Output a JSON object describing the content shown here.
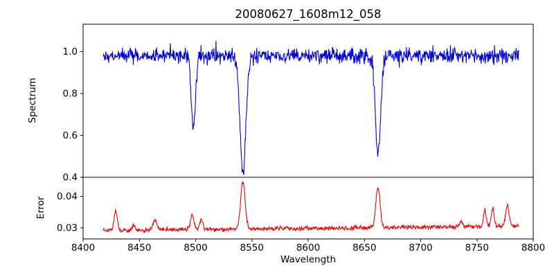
{
  "chart_data": {
    "type": "line",
    "title": "20080627_1608m12_058",
    "xlabel": "Wavelength",
    "xlim": [
      8400,
      8800
    ],
    "x_range": [
      8418,
      8787
    ],
    "n_points": 1000,
    "seed": 20080627,
    "grid": false,
    "legend": "none",
    "xticks": [
      {
        "v": 8400,
        "label": "8400"
      },
      {
        "v": 8450,
        "label": "8450"
      },
      {
        "v": 8500,
        "label": "8500"
      },
      {
        "v": 8550,
        "label": "8550"
      },
      {
        "v": 8600,
        "label": "8600"
      },
      {
        "v": 8650,
        "label": "8650"
      },
      {
        "v": 8700,
        "label": "8700"
      },
      {
        "v": 8750,
        "label": "8750"
      },
      {
        "v": 8800,
        "label": "8800"
      }
    ],
    "panels": [
      {
        "panel": "spectrum",
        "ylabel": "Spectrum",
        "color": "#0000dd",
        "ylim": [
          0.4,
          1.13
        ],
        "yticks": [
          {
            "v": 0.4,
            "label": "0.4"
          },
          {
            "v": 0.6,
            "label": "0.6"
          },
          {
            "v": 0.8,
            "label": "0.8"
          },
          {
            "v": 1.0,
            "label": "1.0"
          }
        ],
        "continuum": 0.98,
        "noise_sigma": 0.018,
        "absorption_lines": [
          {
            "center": 8498.0,
            "depth": 0.33,
            "width": 1.9
          },
          {
            "center": 8542.1,
            "depth": 0.56,
            "width": 2.6
          },
          {
            "center": 8662.1,
            "depth": 0.47,
            "width": 2.3
          }
        ]
      },
      {
        "panel": "error",
        "ylabel": "Error",
        "color": "#ee0000",
        "ylim": [
          0.0265,
          0.046
        ],
        "yticks": [
          {
            "v": 0.03,
            "label": "0.03"
          },
          {
            "v": 0.04,
            "label": "0.04"
          }
        ],
        "baseline": 0.0292,
        "slope_per_angstrom": 3.5e-06,
        "noise_sigma": 0.00035,
        "spikes": [
          {
            "center": 8429,
            "height": 0.0062,
            "width": 1.4
          },
          {
            "center": 8445,
            "height": 0.0015,
            "width": 1.2
          },
          {
            "center": 8464,
            "height": 0.0032,
            "width": 1.6
          },
          {
            "center": 8497,
            "height": 0.0048,
            "width": 1.5
          },
          {
            "center": 8505,
            "height": 0.0032,
            "width": 1.3
          },
          {
            "center": 8542,
            "height": 0.0148,
            "width": 2.0
          },
          {
            "center": 8662,
            "height": 0.0125,
            "width": 1.9
          },
          {
            "center": 8736,
            "height": 0.0018,
            "width": 1.3
          },
          {
            "center": 8757,
            "height": 0.0052,
            "width": 1.3
          },
          {
            "center": 8764,
            "height": 0.0058,
            "width": 1.3
          },
          {
            "center": 8777,
            "height": 0.0068,
            "width": 1.5
          }
        ]
      }
    ]
  }
}
